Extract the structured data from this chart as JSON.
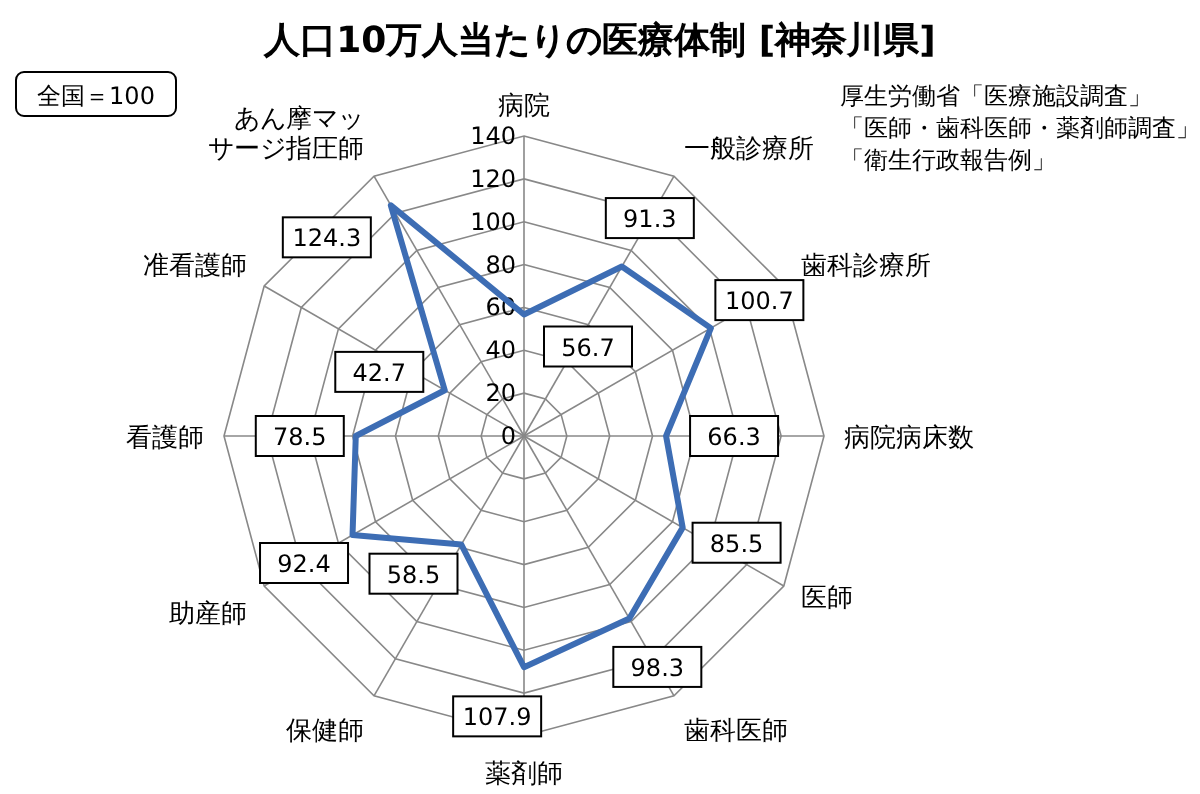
{
  "chart_data": {
    "type": "radar",
    "title": "人口10万人当たりの医療体制 [神奈川県]",
    "categories": [
      "病院",
      "一般診療所",
      "歯科診療所",
      "病院病床数",
      "医師",
      "歯科医師",
      "薬剤師",
      "保健師",
      "助産師",
      "看護師",
      "准看護師",
      "あん摩マッサージ指圧師"
    ],
    "series": [
      {
        "color": "#3d6db4",
        "values": [
          56.7,
          91.3,
          100.7,
          66.3,
          85.5,
          98.3,
          107.9,
          58.5,
          92.4,
          78.5,
          42.7,
          124.3
        ]
      }
    ],
    "ylim": [
      0,
      140
    ],
    "yticks": [
      0,
      20,
      40,
      60,
      80,
      100,
      120,
      140
    ],
    "data_labels": true,
    "marker": "none",
    "grid": true,
    "annotations": [
      "全国＝100",
      "厚生労働省「医療施設調査」",
      "「医師・歯科医師・薬剤師調査」",
      "「衛生行政報告例」"
    ]
  }
}
